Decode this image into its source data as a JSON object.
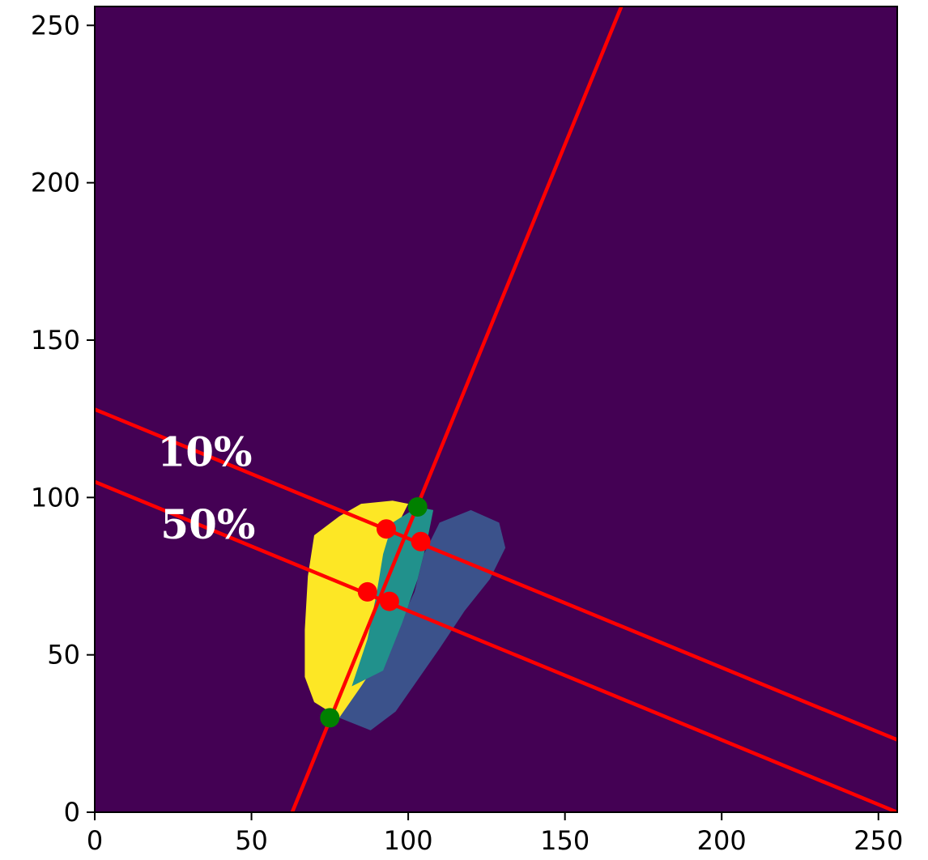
{
  "chart_data": {
    "type": "heatmap",
    "title": "",
    "xlabel": "",
    "ylabel": "",
    "xlim": [
      0,
      256
    ],
    "ylim": [
      0,
      256
    ],
    "x_ticks": [
      "0",
      "50",
      "100",
      "150",
      "200",
      "250"
    ],
    "y_ticks": [
      "0",
      "50",
      "100",
      "150",
      "200",
      "250"
    ],
    "grid": false,
    "colors": {
      "background": "#440154",
      "region_yellow": "#fde725",
      "region_teal": "#21918c",
      "region_blue": "#3b528b",
      "line": "#ff0000",
      "point_red": "#ff0000",
      "point_green": "#008000"
    },
    "regions": [
      {
        "name": "yellow",
        "polygon": [
          [
            78,
            30
          ],
          [
            86,
            28
          ],
          [
            90,
            40
          ],
          [
            92,
            55
          ],
          [
            94,
            70
          ],
          [
            96,
            80
          ],
          [
            97,
            92
          ],
          [
            100,
            98
          ],
          [
            95,
            99
          ],
          [
            85,
            98
          ],
          [
            78,
            94
          ],
          [
            70,
            88
          ],
          [
            68,
            75
          ],
          [
            67,
            58
          ],
          [
            67,
            43
          ],
          [
            70,
            35
          ]
        ]
      },
      {
        "name": "teal",
        "polygon": [
          [
            82,
            40
          ],
          [
            87,
            55
          ],
          [
            90,
            70
          ],
          [
            92,
            82
          ],
          [
            95,
            92
          ],
          [
            103,
            97
          ],
          [
            108,
            96
          ],
          [
            106,
            86
          ],
          [
            103,
            74
          ],
          [
            98,
            60
          ],
          [
            92,
            45
          ]
        ]
      },
      {
        "name": "blue",
        "polygon": [
          [
            78,
            30
          ],
          [
            88,
            26
          ],
          [
            96,
            32
          ],
          [
            103,
            42
          ],
          [
            110,
            52
          ],
          [
            118,
            64
          ],
          [
            126,
            74
          ],
          [
            131,
            84
          ],
          [
            129,
            92
          ],
          [
            120,
            96
          ],
          [
            110,
            92
          ],
          [
            105,
            82
          ],
          [
            102,
            70
          ],
          [
            95,
            55
          ],
          [
            85,
            40
          ]
        ]
      }
    ],
    "lines": [
      {
        "name": "axis",
        "points": [
          [
            63,
            0
          ],
          [
            168,
            256
          ]
        ]
      },
      {
        "name": "10%",
        "points": [
          [
            0,
            128
          ],
          [
            256,
            23
          ]
        ]
      },
      {
        "name": "50%",
        "points": [
          [
            0,
            105
          ],
          [
            256,
            0
          ]
        ]
      }
    ],
    "points_red": [
      [
        93,
        90
      ],
      [
        104,
        86
      ],
      [
        87,
        70
      ],
      [
        94,
        67
      ]
    ],
    "points_green": [
      [
        103,
        97
      ],
      [
        75,
        30
      ]
    ],
    "annotations": [
      {
        "text": "10%",
        "x": 20,
        "y": 110
      },
      {
        "text": "50%",
        "x": 21,
        "y": 87
      }
    ]
  }
}
